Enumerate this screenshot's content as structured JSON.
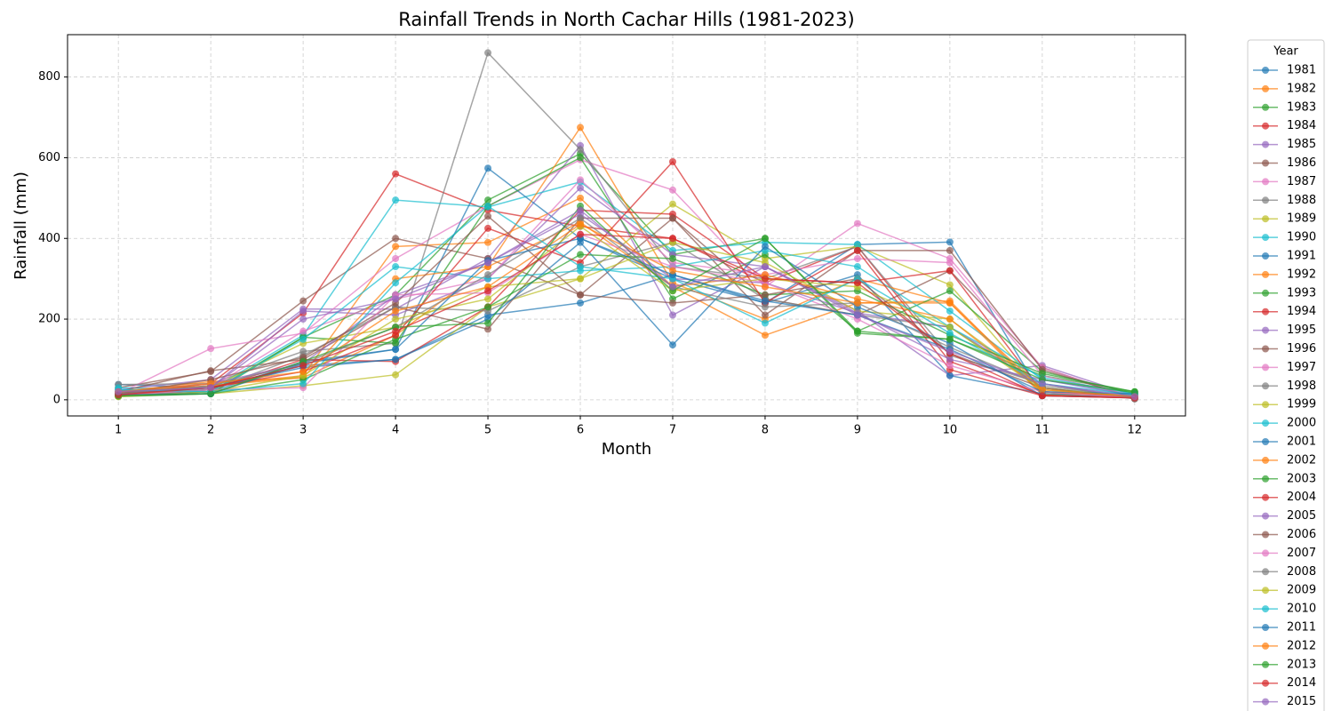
{
  "chart_data": {
    "type": "line",
    "title": "Rainfall Trends in North Cachar Hills (1981-2023)",
    "x_label": "Month",
    "y_label": "Rainfall (mm)",
    "legend_title": "Year",
    "legend": "outside-right",
    "grid": true,
    "x": [
      1,
      2,
      3,
      4,
      5,
      6,
      7,
      8,
      9,
      10,
      11,
      12
    ],
    "xlim": [
      0.45,
      12.55
    ],
    "xticks": [
      1,
      2,
      3,
      4,
      5,
      6,
      7,
      8,
      9,
      10,
      11,
      12
    ],
    "ylim": [
      -40,
      905
    ],
    "yticks": [
      0,
      200,
      400,
      600,
      800
    ],
    "series": [
      {
        "name": "1981",
        "color": "#1f77b4",
        "values": [
          38,
          30,
          85,
          100,
          210,
          240,
          310,
          240,
          385,
          391,
          10,
          5
        ]
      },
      {
        "name": "1982",
        "color": "#ff7f0e",
        "values": [
          20,
          35,
          60,
          380,
          390,
          500,
          280,
          160,
          240,
          245,
          15,
          8
        ]
      },
      {
        "name": "1983",
        "color": "#2ca02c",
        "values": [
          10,
          20,
          155,
          260,
          495,
          610,
          360,
          400,
          165,
          150,
          60,
          20
        ]
      },
      {
        "name": "1984",
        "color": "#d62728",
        "values": [
          15,
          40,
          215,
          560,
          470,
          430,
          400,
          290,
          380,
          95,
          12,
          5
        ]
      },
      {
        "name": "1985",
        "color": "#9467bd",
        "values": [
          25,
          50,
          225,
          225,
          350,
          630,
          210,
          330,
          220,
          60,
          85,
          10
        ]
      },
      {
        "name": "1986",
        "color": "#8c564b",
        "values": [
          30,
          70,
          245,
          400,
          350,
          260,
          450,
          250,
          210,
          320,
          80,
          3
        ]
      },
      {
        "name": "1987",
        "color": "#e377c2",
        "values": [
          15,
          127,
          165,
          350,
          480,
          595,
          520,
          280,
          437,
          350,
          80,
          5
        ]
      },
      {
        "name": "1988",
        "color": "#7f7f7f",
        "values": [
          38,
          40,
          120,
          140,
          860,
          620,
          330,
          300,
          380,
          110,
          40,
          2
        ]
      },
      {
        "name": "1989",
        "color": "#bcbd22",
        "values": [
          12,
          15,
          35,
          62,
          230,
          300,
          485,
          350,
          380,
          285,
          20,
          8
        ]
      },
      {
        "name": "1990",
        "color": "#17becf",
        "values": [
          30,
          25,
          160,
          495,
          478,
          540,
          370,
          390,
          385,
          220,
          50,
          12
        ]
      },
      {
        "name": "1991",
        "color": "#1f77b4",
        "values": [
          10,
          20,
          95,
          125,
          574,
          400,
          300,
          240,
          310,
          60,
          15,
          10
        ]
      },
      {
        "name": "1992",
        "color": "#ff7f0e",
        "values": [
          20,
          45,
          55,
          160,
          330,
          675,
          290,
          200,
          300,
          240,
          12,
          5
        ]
      },
      {
        "name": "1993",
        "color": "#2ca02c",
        "values": [
          8,
          15,
          155,
          140,
          480,
          600,
          250,
          360,
          170,
          270,
          70,
          15
        ]
      },
      {
        "name": "1994",
        "color": "#d62728",
        "values": [
          12,
          25,
          100,
          95,
          230,
          470,
          460,
          300,
          290,
          320,
          20,
          8
        ]
      },
      {
        "name": "1995",
        "color": "#9467bd",
        "values": [
          20,
          30,
          220,
          210,
          300,
          525,
          360,
          330,
          215,
          180,
          40,
          5
        ]
      },
      {
        "name": "1996",
        "color": "#8c564b",
        "values": [
          20,
          72,
          100,
          230,
          175,
          450,
          450,
          210,
          370,
          370,
          75,
          5
        ]
      },
      {
        "name": "1997",
        "color": "#e377c2",
        "values": [
          15,
          30,
          170,
          250,
          300,
          545,
          340,
          310,
          350,
          340,
          60,
          10
        ]
      },
      {
        "name": "1998",
        "color": "#7f7f7f",
        "values": [
          10,
          25,
          110,
          230,
          220,
          330,
          390,
          250,
          210,
          180,
          30,
          5
        ]
      },
      {
        "name": "1999",
        "color": "#bcbd22",
        "values": [
          10,
          30,
          140,
          180,
          280,
          300,
          390,
          340,
          220,
          200,
          30,
          5
        ]
      },
      {
        "name": "2000",
        "color": "#17becf",
        "values": [
          25,
          20,
          150,
          330,
          300,
          320,
          330,
          370,
          330,
          180,
          55,
          15
        ]
      },
      {
        "name": "2001",
        "color": "#1f77b4",
        "values": [
          15,
          30,
          80,
          100,
          200,
          390,
          136,
          380,
          230,
          140,
          10,
          8
        ]
      },
      {
        "name": "2002",
        "color": "#ff7f0e",
        "values": [
          18,
          35,
          55,
          300,
          330,
          440,
          280,
          310,
          250,
          200,
          20,
          6
        ]
      },
      {
        "name": "2003",
        "color": "#2ca02c",
        "values": [
          10,
          15,
          50,
          150,
          230,
          360,
          350,
          260,
          270,
          160,
          65,
          20
        ]
      },
      {
        "name": "2004",
        "color": "#d62728",
        "values": [
          15,
          30,
          70,
          160,
          425,
          340,
          590,
          240,
          370,
          75,
          10,
          5
        ]
      },
      {
        "name": "2005",
        "color": "#9467bd",
        "values": [
          20,
          40,
          90,
          260,
          340,
          460,
          300,
          290,
          215,
          100,
          50,
          10
        ]
      },
      {
        "name": "2006",
        "color": "#8c564b",
        "values": [
          15,
          50,
          105,
          240,
          455,
          260,
          240,
          260,
          300,
          115,
          30,
          3
        ]
      },
      {
        "name": "2007",
        "color": "#e377c2",
        "values": [
          12,
          25,
          30,
          260,
          265,
          410,
          330,
          290,
          200,
          85,
          20,
          5
        ]
      },
      {
        "name": "2008",
        "color": "#7f7f7f",
        "values": [
          15,
          35,
          90,
          180,
          310,
          450,
          280,
          230,
          240,
          130,
          35,
          5
        ]
      },
      {
        "name": "2009",
        "color": "#bcbd22",
        "values": [
          8,
          20,
          60,
          200,
          250,
          430,
          270,
          300,
          280,
          180,
          25,
          10
        ]
      },
      {
        "name": "2010",
        "color": "#17becf",
        "values": [
          25,
          20,
          40,
          290,
          480,
          330,
          300,
          190,
          300,
          165,
          40,
          12
        ]
      },
      {
        "name": "2011",
        "color": "#1f77b4",
        "values": [
          12,
          15,
          90,
          125,
          345,
          400,
          310,
          245,
          210,
          125,
          20,
          15
        ]
      },
      {
        "name": "2012",
        "color": "#ff7f0e",
        "values": [
          20,
          40,
          70,
          220,
          280,
          435,
          320,
          280,
          240,
          240,
          25,
          8
        ]
      },
      {
        "name": "2013",
        "color": "#2ca02c",
        "values": [
          10,
          15,
          95,
          180,
          190,
          480,
          270,
          400,
          170,
          150,
          50,
          18
        ]
      },
      {
        "name": "2014",
        "color": "#d62728",
        "values": [
          12,
          30,
          85,
          170,
          270,
          410,
          400,
          300,
          290,
          115,
          10,
          5
        ]
      },
      {
        "name": "2015",
        "color": "#9467bd",
        "values": [
          20,
          30,
          200,
          250,
          340,
          470,
          280,
          330,
          210,
          120,
          40,
          8
        ]
      }
    ]
  }
}
